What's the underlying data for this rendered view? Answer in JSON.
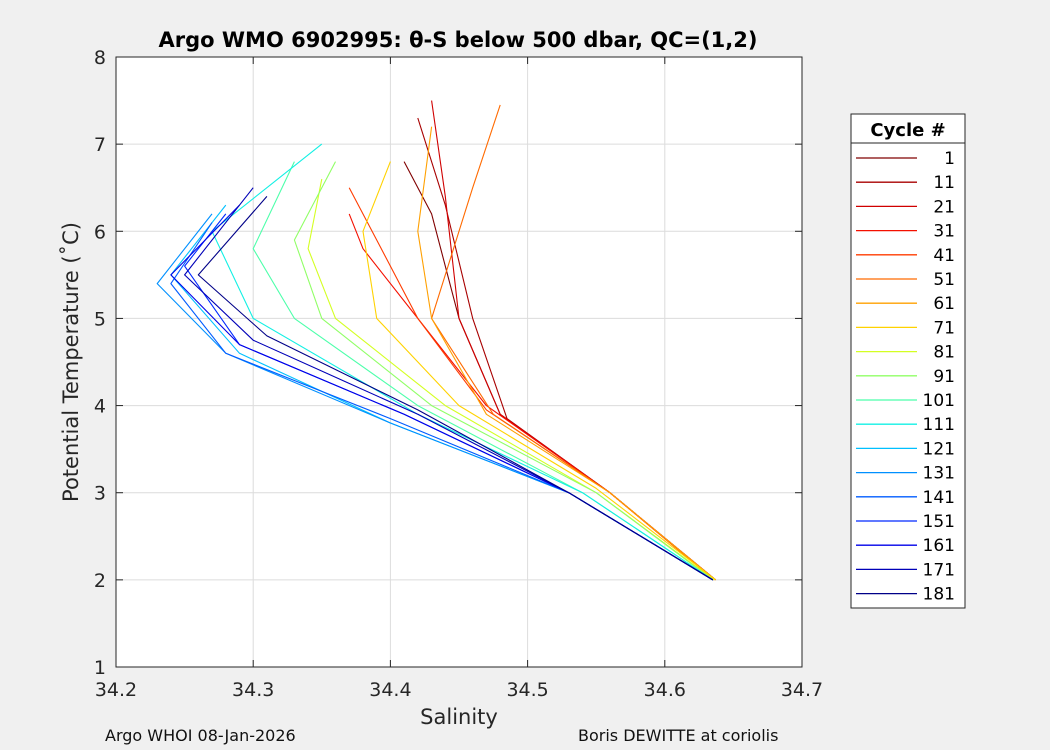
{
  "figure": {
    "footer_left": "Argo WHOI 08-Jan-2026",
    "footer_right": "Boris DEWITTE at coriolis"
  },
  "chart_data": {
    "type": "line",
    "title": "Argo WMO 6902995: θ-S below 500 dbar,  QC=(1,2)",
    "xlabel": "Salinity",
    "ylabel": "Potential Temperature (˚C)",
    "xlim": [
      34.2,
      34.7
    ],
    "ylim": [
      1,
      8
    ],
    "xticks": [
      34.2,
      34.3,
      34.4,
      34.5,
      34.6,
      34.7
    ],
    "xtick_labels": [
      "34.2",
      "34.3",
      "34.4",
      "34.5",
      "34.6",
      "34.7"
    ],
    "yticks": [
      1,
      2,
      3,
      4,
      5,
      6,
      7,
      8
    ],
    "ytick_labels": [
      "1",
      "2",
      "3",
      "4",
      "5",
      "6",
      "7",
      "8"
    ],
    "grid": true,
    "colormap": "jet",
    "legend": {
      "title": "Cycle #",
      "placement": "outside-right",
      "entries": [
        {
          "label": "1",
          "color": "#800000"
        },
        {
          "label": "11",
          "color": "#a80000"
        },
        {
          "label": "21",
          "color": "#d00000"
        },
        {
          "label": "31",
          "color": "#f41000"
        },
        {
          "label": "41",
          "color": "#ff3c00"
        },
        {
          "label": "51",
          "color": "#ff6a00"
        },
        {
          "label": "61",
          "color": "#ffa000"
        },
        {
          "label": "71",
          "color": "#ffd200"
        },
        {
          "label": "81",
          "color": "#d4ff22"
        },
        {
          "label": "91",
          "color": "#90ff66"
        },
        {
          "label": "101",
          "color": "#4cffaa"
        },
        {
          "label": "111",
          "color": "#12f0e4"
        },
        {
          "label": "121",
          "color": "#00c0ff"
        },
        {
          "label": "131",
          "color": "#0090ff"
        },
        {
          "label": "141",
          "color": "#005cff"
        },
        {
          "label": "151",
          "color": "#0028ff"
        },
        {
          "label": "161",
          "color": "#0000e8"
        },
        {
          "label": "171",
          "color": "#0000b8"
        },
        {
          "label": "181",
          "color": "#000088"
        }
      ]
    },
    "series": [
      {
        "cycle": 1,
        "color": "#800000",
        "x": [
          34.637,
          34.56,
          34.48,
          34.45,
          34.43,
          34.41
        ],
        "y": [
          2.0,
          3.0,
          3.9,
          5.0,
          6.2,
          6.8
        ]
      },
      {
        "cycle": 11,
        "color": "#a80000",
        "x": [
          34.637,
          34.56,
          34.485,
          34.46,
          34.44,
          34.42
        ],
        "y": [
          2.0,
          3.0,
          3.85,
          5.0,
          6.3,
          7.3
        ]
      },
      {
        "cycle": 21,
        "color": "#d00000",
        "x": [
          34.637,
          34.56,
          34.48,
          34.45,
          34.44,
          34.43
        ],
        "y": [
          2.0,
          3.0,
          3.9,
          5.0,
          6.4,
          7.5
        ]
      },
      {
        "cycle": 31,
        "color": "#f41000",
        "x": [
          34.636,
          34.56,
          34.47,
          34.42,
          34.38,
          34.37
        ],
        "y": [
          2.0,
          3.0,
          4.0,
          5.0,
          5.8,
          6.2
        ]
      },
      {
        "cycle": 41,
        "color": "#ff3c00",
        "x": [
          34.636,
          34.56,
          34.47,
          34.42,
          34.39,
          34.37
        ],
        "y": [
          2.0,
          3.0,
          3.95,
          5.0,
          5.9,
          6.5
        ]
      },
      {
        "cycle": 51,
        "color": "#ff6a00",
        "x": [
          34.636,
          34.56,
          34.475,
          34.43,
          34.46,
          34.48
        ],
        "y": [
          2.0,
          3.0,
          3.9,
          5.0,
          6.5,
          7.45
        ]
      },
      {
        "cycle": 61,
        "color": "#ffa000",
        "x": [
          34.637,
          34.56,
          34.47,
          34.43,
          34.42,
          34.43
        ],
        "y": [
          2.0,
          3.0,
          3.9,
          5.0,
          6.0,
          7.2
        ]
      },
      {
        "cycle": 71,
        "color": "#ffd200",
        "x": [
          34.637,
          34.55,
          34.45,
          34.39,
          34.38,
          34.4
        ],
        "y": [
          2.0,
          3.05,
          4.0,
          5.0,
          6.0,
          6.8
        ]
      },
      {
        "cycle": 81,
        "color": "#d4ff22",
        "x": [
          34.636,
          34.55,
          34.44,
          34.36,
          34.34,
          34.35
        ],
        "y": [
          2.0,
          3.0,
          4.0,
          5.0,
          5.8,
          6.6
        ]
      },
      {
        "cycle": 91,
        "color": "#90ff66",
        "x": [
          34.635,
          34.55,
          34.43,
          34.35,
          34.33,
          34.36
        ],
        "y": [
          2.0,
          3.0,
          4.0,
          5.0,
          5.9,
          6.8
        ]
      },
      {
        "cycle": 101,
        "color": "#4cffaa",
        "x": [
          34.635,
          34.54,
          34.42,
          34.33,
          34.3,
          34.33
        ],
        "y": [
          2.0,
          3.0,
          4.0,
          5.0,
          5.8,
          6.8
        ]
      },
      {
        "cycle": 111,
        "color": "#12f0e4",
        "x": [
          34.635,
          34.54,
          34.42,
          34.3,
          34.27,
          34.35
        ],
        "y": [
          2.0,
          3.0,
          3.9,
          5.0,
          6.0,
          7.0
        ]
      },
      {
        "cycle": 121,
        "color": "#00c0ff",
        "x": [
          34.635,
          34.53,
          34.4,
          34.29,
          34.24,
          34.28
        ],
        "y": [
          2.0,
          3.0,
          3.8,
          4.6,
          5.5,
          6.3
        ]
      },
      {
        "cycle": 131,
        "color": "#0090ff",
        "x": [
          34.635,
          34.53,
          34.4,
          34.28,
          34.23,
          34.27
        ],
        "y": [
          2.0,
          3.0,
          3.8,
          4.6,
          5.4,
          6.2
        ]
      },
      {
        "cycle": 141,
        "color": "#005cff",
        "x": [
          34.635,
          34.53,
          34.4,
          34.28,
          34.24,
          34.27
        ],
        "y": [
          2.0,
          3.0,
          3.85,
          4.6,
          5.4,
          6.1
        ]
      },
      {
        "cycle": 151,
        "color": "#0028ff",
        "x": [
          34.635,
          34.53,
          34.41,
          34.29,
          34.25,
          34.28
        ],
        "y": [
          2.0,
          3.0,
          3.9,
          4.7,
          5.6,
          6.2
        ]
      },
      {
        "cycle": 161,
        "color": "#0000e8",
        "x": [
          34.635,
          34.53,
          34.41,
          34.29,
          34.24,
          34.29
        ],
        "y": [
          2.0,
          3.0,
          3.9,
          4.7,
          5.5,
          6.3
        ]
      },
      {
        "cycle": 171,
        "color": "#0000b8",
        "x": [
          34.635,
          34.53,
          34.42,
          34.3,
          34.25,
          34.3
        ],
        "y": [
          2.0,
          3.0,
          3.9,
          4.75,
          5.5,
          6.5
        ]
      },
      {
        "cycle": 181,
        "color": "#000088",
        "x": [
          34.635,
          34.53,
          34.42,
          34.31,
          34.26,
          34.31
        ],
        "y": [
          2.0,
          3.0,
          3.95,
          4.8,
          5.5,
          6.4
        ]
      }
    ]
  }
}
